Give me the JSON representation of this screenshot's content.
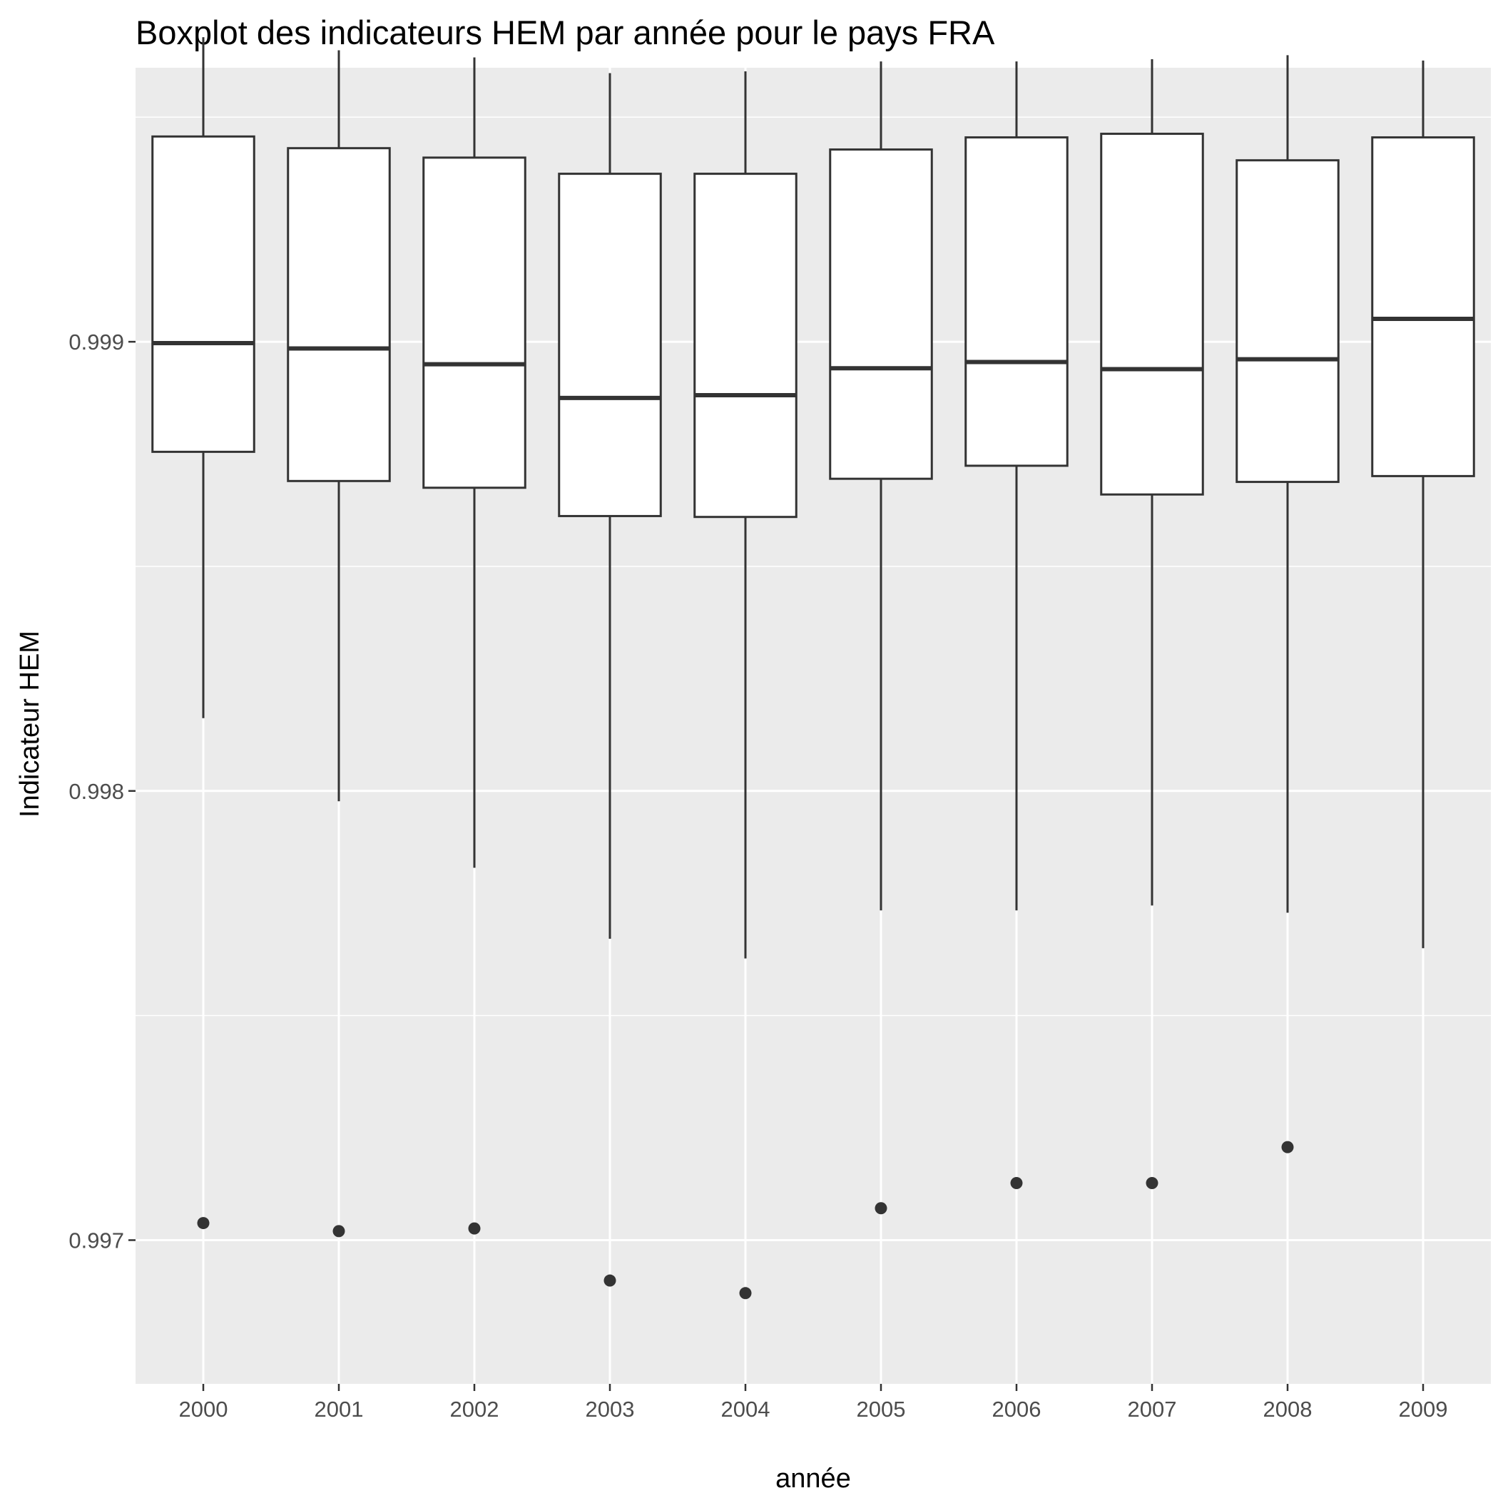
{
  "chart_data": {
    "type": "boxplot",
    "title": "Boxplot des indicateurs HEM par année pour le pays FRA",
    "xlabel": "année",
    "ylabel": "Indicateur HEM",
    "categories": [
      "2000",
      "2001",
      "2002",
      "2003",
      "2004",
      "2005",
      "2006",
      "2007",
      "2008",
      "2009"
    ],
    "ylim": [
      0.99668,
      0.99961
    ],
    "yticks": [
      0.997,
      0.998,
      0.999
    ],
    "ytick_labels": [
      "0.997",
      "0.998",
      "0.999"
    ],
    "grid": true,
    "colors": {
      "panel": "#EBEBEB",
      "grid": "#FFFFFF",
      "box_line": "#333333",
      "box_fill": "#FFFFFF",
      "tick_label": "#4D4D4D"
    },
    "boxes": [
      {
        "year": "2000",
        "whisker_low": 0.998162,
        "q1": 0.998755,
        "median": 0.998997,
        "q3": 0.999457,
        "whisker_high": 0.999678,
        "outliers": [
          0.997038
        ]
      },
      {
        "year": "2001",
        "whisker_low": 0.997977,
        "q1": 0.99869,
        "median": 0.998985,
        "q3": 0.999431,
        "whisker_high": 0.999649,
        "outliers": [
          0.99702
        ]
      },
      {
        "year": "2002",
        "whisker_low": 0.997829,
        "q1": 0.998675,
        "median": 0.99895,
        "q3": 0.99941,
        "whisker_high": 0.999633,
        "outliers": [
          0.997026
        ]
      },
      {
        "year": "2003",
        "whisker_low": 0.997671,
        "q1": 0.998612,
        "median": 0.998875,
        "q3": 0.999374,
        "whisker_high": 0.999598,
        "outliers": [
          0.99691
        ]
      },
      {
        "year": "2004",
        "whisker_low": 0.997627,
        "q1": 0.99861,
        "median": 0.998881,
        "q3": 0.999374,
        "whisker_high": 0.999602,
        "outliers": [
          0.996882
        ]
      },
      {
        "year": "2005",
        "whisker_low": 0.997734,
        "q1": 0.998695,
        "median": 0.998941,
        "q3": 0.999428,
        "whisker_high": 0.999624,
        "outliers": [
          0.997071
        ]
      },
      {
        "year": "2006",
        "whisker_low": 0.997734,
        "q1": 0.998724,
        "median": 0.998955,
        "q3": 0.999455,
        "whisker_high": 0.999624,
        "outliers": [
          0.997127
        ]
      },
      {
        "year": "2007",
        "whisker_low": 0.997745,
        "q1": 0.99866,
        "median": 0.998939,
        "q3": 0.999463,
        "whisker_high": 0.999629,
        "outliers": [
          0.997127
        ]
      },
      {
        "year": "2008",
        "whisker_low": 0.997729,
        "q1": 0.998688,
        "median": 0.998961,
        "q3": 0.999404,
        "whisker_high": 0.999638,
        "outliers": [
          0.997207
        ]
      },
      {
        "year": "2009",
        "whisker_low": 0.99765,
        "q1": 0.998701,
        "median": 0.999051,
        "q3": 0.999455,
        "whisker_high": 0.999626,
        "outliers": []
      }
    ]
  }
}
